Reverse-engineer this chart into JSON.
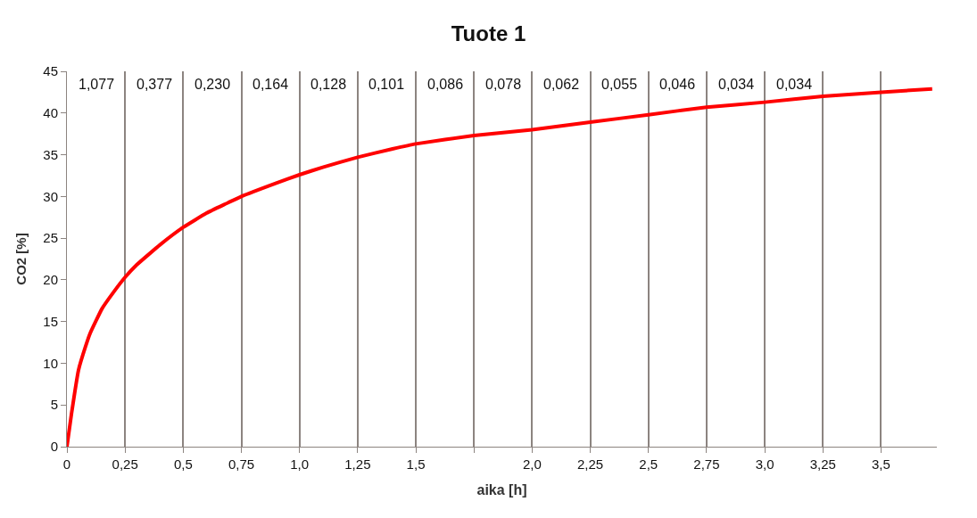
{
  "chart_data": {
    "type": "line",
    "title": "Tuote 1",
    "xlabel": "aika [h]",
    "ylabel": "CO2 [%]",
    "x": [
      0,
      0.02,
      0.05,
      0.08,
      0.1,
      0.15,
      0.2,
      0.25,
      0.3,
      0.4,
      0.5,
      0.6,
      0.75,
      0.9,
      1.0,
      1.1,
      1.25,
      1.4,
      1.5,
      1.75,
      2.0,
      2.25,
      2.5,
      2.75,
      3.0,
      3.25,
      3.5,
      3.72
    ],
    "series": [
      {
        "color": "#ff0000",
        "values": [
          0,
          4,
          9.2,
          12,
          13.6,
          16.5,
          18.5,
          20.3,
          21.8,
          24.2,
          26.3,
          28,
          30,
          31.6,
          32.6,
          33.5,
          34.7,
          35.7,
          36.3,
          37.3,
          38,
          38.9,
          39.8,
          40.7,
          41.3,
          42,
          42.5,
          42.9
        ]
      }
    ],
    "xlim": [
      0,
      3.74
    ],
    "ylim": [
      0,
      45
    ],
    "xticks": [
      0,
      {
        "value": 0.25,
        "label": "0,25"
      },
      {
        "value": 0.5,
        "label": "0,5"
      },
      {
        "value": 0.75,
        "label": "0,75"
      },
      {
        "value": 1.0,
        "label": "1,0"
      },
      {
        "value": 1.25,
        "label": "1,25"
      },
      {
        "value": 1.5,
        "label": "1,5"
      },
      {
        "value": 1.75,
        "label": null
      },
      {
        "value": 2.0,
        "label": "2,0"
      },
      {
        "value": 2.25,
        "label": "2,25"
      },
      {
        "value": 2.5,
        "label": "2,5"
      },
      {
        "value": 2.75,
        "label": "2,75"
      },
      {
        "value": 3.0,
        "label": "3,0"
      },
      {
        "value": 3.25,
        "label": "3,25"
      },
      {
        "value": 3.5,
        "label": "3,5"
      }
    ],
    "yticks": [
      0,
      5,
      10,
      15,
      20,
      25,
      30,
      35,
      40,
      45
    ],
    "grid": "x",
    "marker": "none",
    "line_style": "solid",
    "annotations": [
      {
        "text": "1,077",
        "x": 0.125,
        "y": 43.5
      },
      {
        "text": "0,377",
        "x": 0.375,
        "y": 43.5
      },
      {
        "text": "0,230",
        "x": 0.625,
        "y": 43.5
      },
      {
        "text": "0,164",
        "x": 0.875,
        "y": 43.5
      },
      {
        "text": "0,128",
        "x": 1.125,
        "y": 43.5
      },
      {
        "text": "0,101",
        "x": 1.375,
        "y": 43.5
      },
      {
        "text": "0,086",
        "x": 1.625,
        "y": 43.5
      },
      {
        "text": "0,078",
        "x": 1.875,
        "y": 43.5
      },
      {
        "text": "0,062",
        "x": 2.125,
        "y": 43.5
      },
      {
        "text": "0,055",
        "x": 2.375,
        "y": 43.5
      },
      {
        "text": "0,046",
        "x": 2.625,
        "y": 43.5
      },
      {
        "text": "0,034",
        "x": 2.875,
        "y": 43.5
      },
      {
        "text": "0,034",
        "x": 3.125,
        "y": 43.5
      }
    ]
  }
}
